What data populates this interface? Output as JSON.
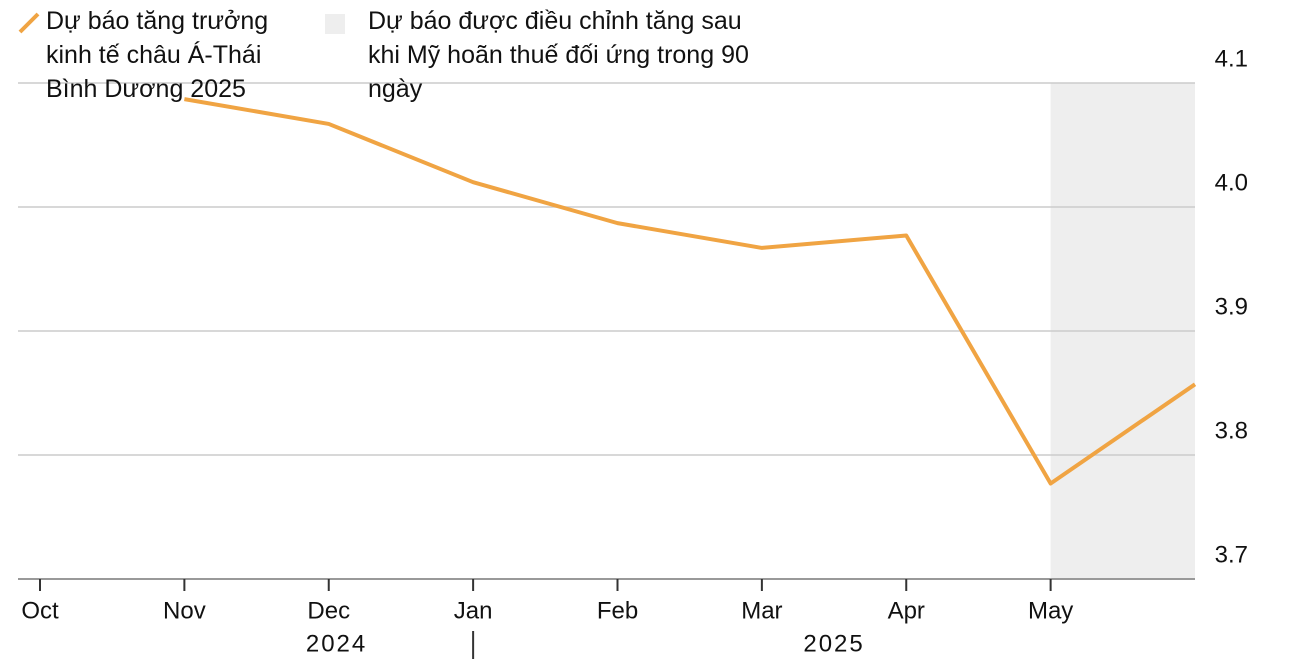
{
  "chart_data": {
    "type": "line",
    "categories": [
      "Oct",
      "Nov",
      "Dec",
      "Jan",
      "Feb",
      "Mar",
      "Apr",
      "May",
      null
    ],
    "years": [
      "2024",
      "2025"
    ],
    "series": [
      {
        "name": "Dự báo tăng trưởng kinh tế châu Á-Thái Bình Dương 2025",
        "color": "#f0a443",
        "values": [
          null,
          4.087,
          4.067,
          4.02,
          3.987,
          3.967,
          3.977,
          3.777,
          3.857
        ]
      }
    ],
    "highlight": {
      "name": "Dự báo được điều chỉnh tăng sau khi Mỹ hoãn thuế đối ứng trong 90 ngày",
      "color": "#eeeeee",
      "start": "May"
    },
    "ylim": [
      3.7,
      4.1
    ],
    "yticks": [
      3.7,
      3.8,
      3.9,
      {
        "value": 4,
        "label": "4.0"
      },
      4.1
    ],
    "grid": true
  }
}
